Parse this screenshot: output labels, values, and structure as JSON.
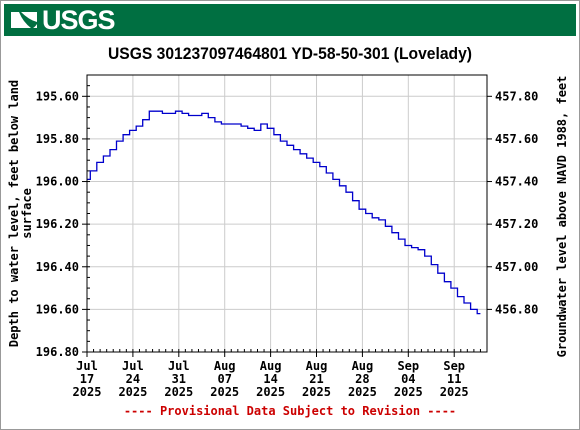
{
  "header": {
    "logo_text": "USGS",
    "logo_icon": "usgs-wave-icon",
    "bg_color": "#006F41"
  },
  "title": "USGS 301237097464801 YD-58-50-301 (Lovelady)",
  "footer": "---- Provisional Data Subject to Revision ----",
  "chart_data": {
    "type": "line",
    "title": "USGS 301237097464801 YD-58-50-301 (Lovelady)",
    "ylabel": "Depth to water level, feet below land surface",
    "ylabel_lines": [
      "Depth to water level, feet below land",
      "surface"
    ],
    "y2label": "Groundwater level above NAVD 1988, feet",
    "xlim": [
      "2025-07-17",
      "2025-09-16"
    ],
    "ylim": [
      195.5,
      196.8
    ],
    "y_inverted": true,
    "y_ticks": [
      "195.60",
      "195.80",
      "196.00",
      "196.20",
      "196.40",
      "196.60",
      "196.80"
    ],
    "y2_ticks": [
      "457.80",
      "457.60",
      "457.40",
      "457.20",
      "457.00",
      "456.80"
    ],
    "x_ticks": [
      {
        "date": "2025-07-17",
        "label": [
          "Jul",
          "17",
          "2025"
        ]
      },
      {
        "date": "2025-07-24",
        "label": [
          "Jul",
          "24",
          "2025"
        ]
      },
      {
        "date": "2025-07-31",
        "label": [
          "Jul",
          "31",
          "2025"
        ]
      },
      {
        "date": "2025-08-07",
        "label": [
          "Aug",
          "07",
          "2025"
        ]
      },
      {
        "date": "2025-08-14",
        "label": [
          "Aug",
          "14",
          "2025"
        ]
      },
      {
        "date": "2025-08-21",
        "label": [
          "Aug",
          "21",
          "2025"
        ]
      },
      {
        "date": "2025-08-28",
        "label": [
          "Aug",
          "28",
          "2025"
        ]
      },
      {
        "date": "2025-09-04",
        "label": [
          "Sep",
          "04",
          "2025"
        ]
      },
      {
        "date": "2025-09-11",
        "label": [
          "Sep",
          "11",
          "2025"
        ]
      }
    ],
    "grid": true,
    "line_color": "#0000CC",
    "series": [
      {
        "x": [
          "2025-07-17",
          "2025-07-18",
          "2025-07-19",
          "2025-07-20",
          "2025-07-21",
          "2025-07-22",
          "2025-07-23",
          "2025-07-24",
          "2025-07-25",
          "2025-07-26",
          "2025-07-27",
          "2025-07-28",
          "2025-07-29",
          "2025-07-30",
          "2025-07-31",
          "2025-08-01",
          "2025-08-02",
          "2025-08-03",
          "2025-08-04",
          "2025-08-05",
          "2025-08-06",
          "2025-08-07",
          "2025-08-08",
          "2025-08-09",
          "2025-08-10",
          "2025-08-11",
          "2025-08-12",
          "2025-08-13",
          "2025-08-14",
          "2025-08-15",
          "2025-08-16",
          "2025-08-17",
          "2025-08-18",
          "2025-08-19",
          "2025-08-20",
          "2025-08-21",
          "2025-08-22",
          "2025-08-23",
          "2025-08-24",
          "2025-08-25",
          "2025-08-26",
          "2025-08-27",
          "2025-08-28",
          "2025-08-29",
          "2025-08-30",
          "2025-08-31",
          "2025-09-01",
          "2025-09-02",
          "2025-09-03",
          "2025-09-04",
          "2025-09-05",
          "2025-09-06",
          "2025-09-07",
          "2025-09-08",
          "2025-09-09",
          "2025-09-10",
          "2025-09-11",
          "2025-09-12",
          "2025-09-13",
          "2025-09-14",
          "2025-09-15"
        ],
        "y": [
          195.99,
          195.95,
          195.91,
          195.88,
          195.85,
          195.81,
          195.78,
          195.76,
          195.74,
          195.71,
          195.67,
          195.67,
          195.68,
          195.68,
          195.67,
          195.68,
          195.69,
          195.69,
          195.68,
          195.7,
          195.72,
          195.73,
          195.73,
          195.73,
          195.74,
          195.75,
          195.76,
          195.73,
          195.75,
          195.78,
          195.81,
          195.83,
          195.85,
          195.87,
          195.89,
          195.91,
          195.93,
          195.96,
          195.99,
          196.02,
          196.05,
          196.09,
          196.13,
          196.15,
          196.17,
          196.18,
          196.21,
          196.24,
          196.27,
          196.3,
          196.31,
          196.32,
          196.35,
          196.39,
          196.43,
          196.47,
          196.5,
          196.54,
          196.57,
          196.6,
          196.62
        ]
      }
    ]
  }
}
